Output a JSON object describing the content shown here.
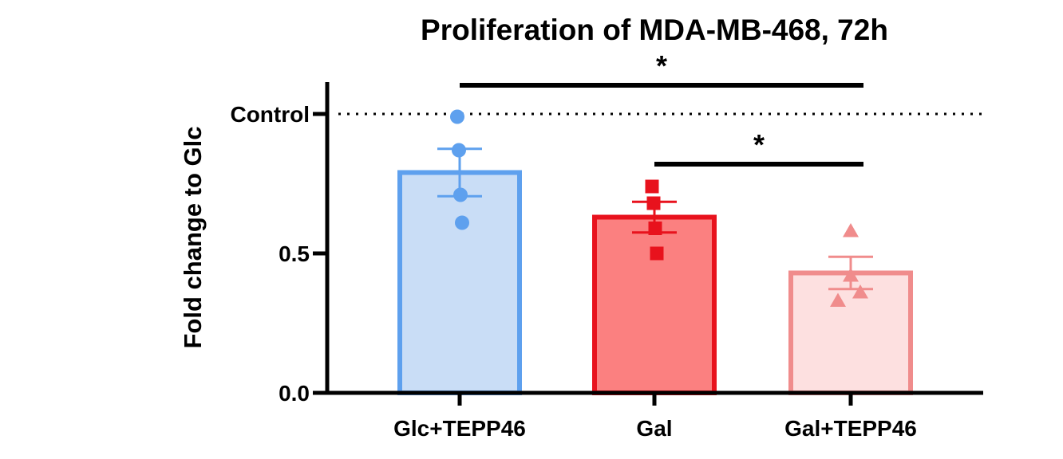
{
  "chart_data": {
    "type": "bar",
    "title": "Proliferation of MDA-MB-468, 72h",
    "xlabel": "",
    "ylabel": "Fold change to Glc",
    "ylim": [
      0,
      1.1
    ],
    "categories": [
      "Glc+TEPP46",
      "Gal",
      "Gal+TEPP46"
    ],
    "values": [
      0.79,
      0.63,
      0.43
    ],
    "error_sem": [
      0.085,
      0.055,
      0.058
    ],
    "replicates": [
      [
        0.99,
        0.87,
        0.71,
        0.61
      ],
      [
        0.74,
        0.68,
        0.59,
        0.5
      ],
      [
        0.58,
        0.42,
        0.36,
        0.33
      ]
    ],
    "yticks": [
      {
        "value": 0.0,
        "label": "0.0"
      },
      {
        "value": 0.5,
        "label": "0.5"
      },
      {
        "value": 1.0,
        "label": "Control"
      }
    ],
    "reference_line": {
      "value": 1.0,
      "label": "Control",
      "style": "dotted"
    },
    "significance": [
      {
        "from": "Glc+TEPP46",
        "to": "Gal+TEPP46",
        "label": "*"
      },
      {
        "from": "Gal",
        "to": "Gal+TEPP46",
        "label": "*"
      }
    ],
    "colors": {
      "bar_fill": [
        "#c9ddf6",
        "#fb8080",
        "#fde0e0"
      ],
      "bar_stroke": [
        "#5ea0ee",
        "#e8121d",
        "#f08c8c"
      ],
      "marker": [
        "#5ea0ee",
        "#e8121d",
        "#f08c8c"
      ],
      "markers": [
        "circle",
        "square",
        "triangle"
      ],
      "axis": "#000000"
    }
  }
}
